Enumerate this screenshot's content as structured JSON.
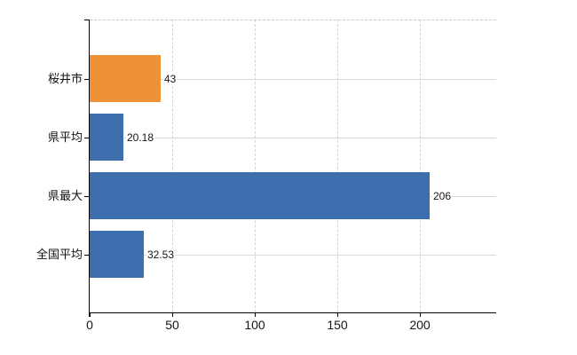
{
  "chart_data": {
    "type": "bar",
    "orientation": "horizontal",
    "title": "",
    "xlabel": "",
    "ylabel": "",
    "categories": [
      "桜井市",
      "県平均",
      "県最大",
      "全国平均"
    ],
    "values": [
      43,
      20.18,
      206,
      32.53
    ],
    "value_labels": [
      "43",
      "20.18",
      "206",
      "32.53"
    ],
    "bar_colors": [
      "#ee9237",
      "#3d6eae",
      "#3d6eae",
      "#3d6eae"
    ],
    "x_ticks": [
      0,
      50,
      100,
      150,
      200
    ],
    "x_tick_labels": [
      "0",
      "50",
      "100",
      "150",
      "200"
    ],
    "xlim": [
      0,
      246
    ],
    "grid": true,
    "gridline_style": {
      "vertical": "dashed",
      "horizontal": "solid"
    },
    "legend": false
  },
  "colors": {
    "background": "#ffffff",
    "axis": "#000000",
    "vertical_gridline": "#d4d4d4",
    "horizontal_gridline": "#d6dbd3",
    "top_border": "#c9c9c9",
    "label_text": "#111111",
    "bar_blue": "#3d6eae",
    "bar_orange": "#ee9237"
  }
}
